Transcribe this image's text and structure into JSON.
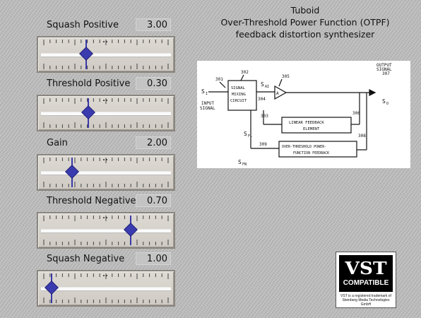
{
  "params": [
    {
      "label": "Squash Positive",
      "value": "3.00",
      "position": 0.34
    },
    {
      "label": "Threshold Positive",
      "value": "0.30",
      "position": 0.36
    },
    {
      "label": "Gain",
      "value": "2.00",
      "position": 0.23
    },
    {
      "label": "Threshold Negative",
      "value": "0.70",
      "position": 0.7
    },
    {
      "label": "Squash Negative",
      "value": "1.00",
      "position": 0.06
    }
  ],
  "title": {
    "line1": "Tuboid",
    "line2": "Over-Threshold Power Function (OTPF)",
    "line3": "feedback distortion synthesizer"
  },
  "diagram": {
    "n301": "301",
    "n302": "302",
    "n305": "305",
    "n304": "304",
    "n303": "303",
    "n306": "306",
    "n308": "308",
    "n309": "309",
    "n307": "307",
    "si": "S",
    "si_sub": "I",
    "input": "INPUT",
    "signal": "SIGNAL",
    "mix1": "SIGNAL",
    "mix2": "MIXING",
    "mix3": "CIRCUIT",
    "sai": "S",
    "sai_sub": "AI",
    "amp": "A",
    "output": "OUTPUT",
    "output2": "SIGNAL",
    "so": "S",
    "so_sub": "O",
    "lin1": "LINEAR FEEDBACK",
    "lin2": "ELEMENT",
    "otp1": "OVER-THRESHOLD POWER-",
    "otp2": "FUNCTION FEEDBACK",
    "sfl": "S",
    "sfl_sub": "FL",
    "sfn": "S",
    "sfn_sub": "FN"
  },
  "vst": {
    "mark": "VST",
    "sub": "COMPATIBLE",
    "note1": "VST is a registered trademark of",
    "note2": "Steinberg Media Technologies GmbH"
  }
}
